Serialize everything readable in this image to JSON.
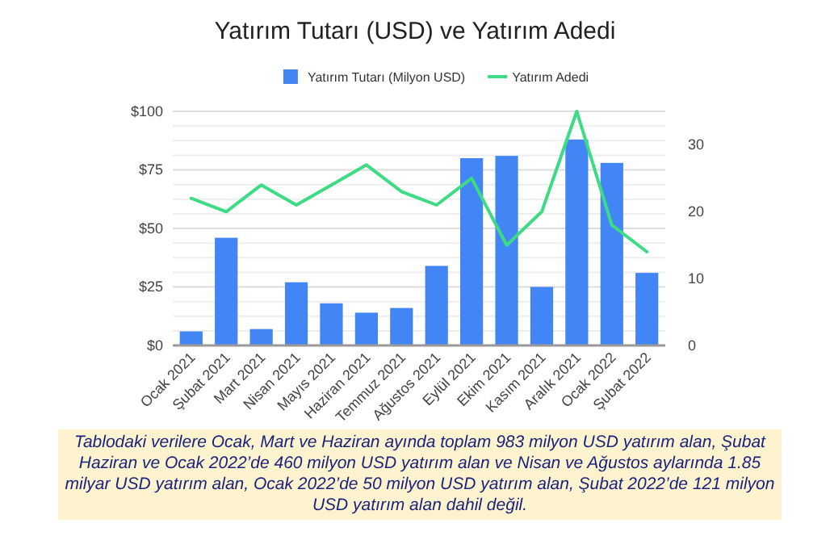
{
  "chart_data": {
    "type": "bar",
    "title": "Yatırım Tutarı (USD) ve Yatırım Adedi",
    "categories": [
      "Ocak 2021",
      "Şubat 2021",
      "Mart 2021",
      "Nisan 2021",
      "Mayıs 2021",
      "Haziran 2021",
      "Temmuz 2021",
      "Ağustos 2021",
      "Eylül 2021",
      "Ekim 2021",
      "Kasım 2021",
      "Aralık 2021",
      "Ocak 2022",
      "Şubat 2022"
    ],
    "series": [
      {
        "name": "Yatırım Tutarı (Milyon USD)",
        "color": "#4285f4",
        "values": [
          6,
          46,
          7,
          27,
          18,
          14,
          16,
          34,
          80,
          81,
          25,
          88,
          78,
          31
        ]
      },
      {
        "name": "Yatırım Adedi",
        "type": "line",
        "axis": "y2",
        "color": "#3ddc84",
        "values": [
          22,
          20,
          24,
          21,
          24,
          27,
          23,
          21,
          25,
          15,
          20,
          35,
          18,
          14
        ]
      }
    ],
    "ylim": [
      0,
      100
    ],
    "yticks": [
      {
        "value": 0,
        "label": "$0"
      },
      {
        "value": 6.25,
        "label": null
      },
      {
        "value": 12.5,
        "label": null
      },
      {
        "value": 18.75,
        "label": null
      },
      {
        "value": 25,
        "label": "$25"
      },
      {
        "value": 31.25,
        "label": null
      },
      {
        "value": 37.5,
        "label": null
      },
      {
        "value": 43.75,
        "label": null
      },
      {
        "value": 50,
        "label": "$50"
      },
      {
        "value": 56.25,
        "label": null
      },
      {
        "value": 62.5,
        "label": null
      },
      {
        "value": 68.75,
        "label": null
      },
      {
        "value": 75,
        "label": "$75"
      },
      {
        "value": 81.25,
        "label": null
      },
      {
        "value": 87.5,
        "label": null
      },
      {
        "value": 93.75,
        "label": null
      },
      {
        "value": 100,
        "label": "$100"
      }
    ],
    "y2lim": [
      0,
      35
    ],
    "y2ticks": [
      0,
      10,
      20,
      30
    ],
    "grid": "y",
    "legend": "top",
    "marker": "none",
    "line_style": "solid",
    "annotations": [
      "Tablodaki verilere Ocak, Mart ve Haziran ayında toplam 983 milyon USD yatırım alan, Şubat Haziran ve Ocak 2022’de 460 milyon USD yatırım alan ve Nisan ve Ağustos aylarında 1.85 milyar USD yatırım alan, Ocak 2022’de 50 milyon USD yatırım alan, Şubat 2022’de 121 milyon USD yatırım alan dahil değil."
    ]
  }
}
